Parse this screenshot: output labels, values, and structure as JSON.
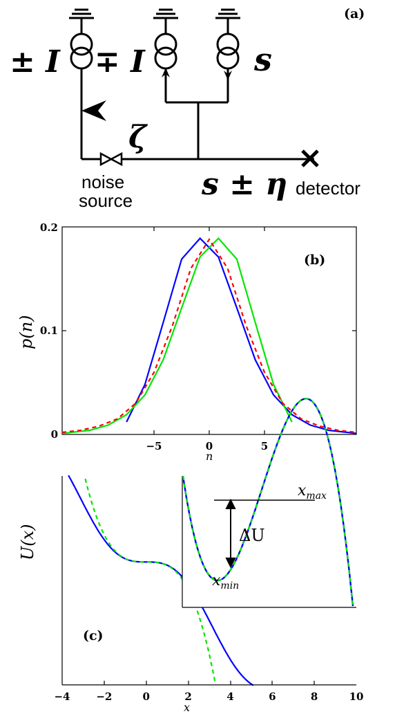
{
  "panel_a": {
    "label": "(a)",
    "src1": "± I",
    "src2": "∓ I",
    "src3": "s",
    "zeta": "ζ",
    "signal": "s ± η",
    "noise_line1": "noise",
    "noise_line2": "source",
    "detector": "detector"
  },
  "chart_data": [
    {
      "type": "line",
      "panel": "(b)",
      "xlabel": "n",
      "ylabel": "p(n)",
      "xlim": [
        -8,
        8
      ],
      "ylim": [
        0,
        0.2
      ],
      "xticks": [
        "−5",
        "0",
        "5"
      ],
      "yticks": [
        "0",
        "0.1",
        "0.2"
      ],
      "series": [
        {
          "color": "#0000ff",
          "style": "solid",
          "x": [
            -4.5,
            -3.5,
            -2.5,
            -1.5,
            -0.5,
            0.5,
            1.5,
            2.5,
            3.5,
            4.5,
            5.5,
            6.5,
            7.5,
            8
          ],
          "y": [
            0.012,
            0.048,
            0.108,
            0.169,
            0.189,
            0.171,
            0.122,
            0.072,
            0.038,
            0.019,
            0.009,
            0.004,
            0.002,
            0.001
          ]
        },
        {
          "color": "#00e600",
          "style": "solid",
          "x": [
            -8,
            -7.5,
            -6.5,
            -5.5,
            -4.5,
            -3.5,
            -2.5,
            -1.5,
            -0.5,
            0.5,
            1.5,
            2.5,
            3.5,
            4.5
          ],
          "y": [
            0.001,
            0.002,
            0.004,
            0.009,
            0.019,
            0.038,
            0.072,
            0.122,
            0.171,
            0.189,
            0.169,
            0.108,
            0.048,
            0.012
          ]
        },
        {
          "color": "#ff0000",
          "style": "dashed",
          "x": [
            -8,
            -7,
            -6,
            -5,
            -4,
            -3,
            -2,
            -1,
            0,
            1,
            2,
            3,
            4,
            5,
            6,
            7,
            8
          ],
          "y": [
            0.002,
            0.004,
            0.008,
            0.015,
            0.03,
            0.06,
            0.105,
            0.16,
            0.188,
            0.16,
            0.105,
            0.06,
            0.03,
            0.015,
            0.008,
            0.004,
            0.002
          ]
        }
      ]
    },
    {
      "type": "line",
      "panel": "(c)",
      "xlabel": "x",
      "ylabel": "U(x)",
      "xlim": [
        -4,
        10
      ],
      "ylim": [
        -6,
        4.2
      ],
      "xticks": [
        "−4",
        "−2",
        "0",
        "2",
        "4",
        "6",
        "8",
        "10"
      ],
      "series": [
        {
          "color": "#0000ff",
          "style": "solid",
          "function": "U(x) = -x + sin(x)"
        },
        {
          "color": "#00e600",
          "style": "dashed",
          "function": "U(x) = -x^3/6"
        }
      ],
      "inset": {
        "labels": {
          "xmax": "x",
          "xmax_sub": "max",
          "xmin": "x",
          "xmin_sub": "min",
          "delta": "ΔU"
        },
        "series": [
          {
            "color": "#0000ff",
            "style": "solid"
          },
          {
            "color": "#00e600",
            "style": "dashed"
          }
        ]
      }
    }
  ]
}
